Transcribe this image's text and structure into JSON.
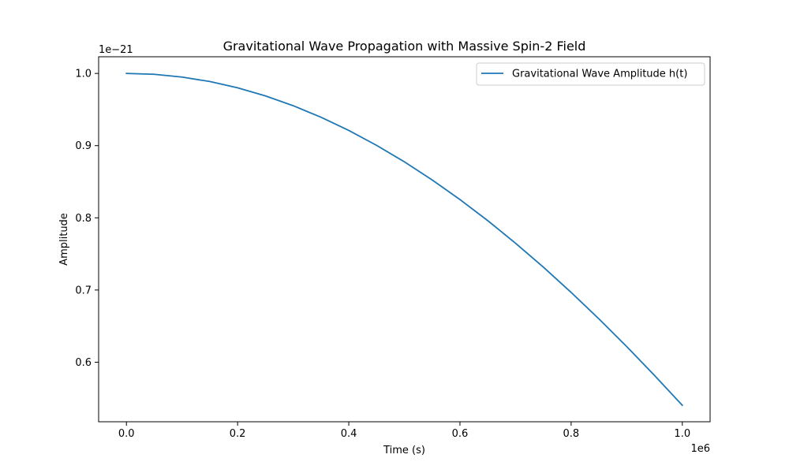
{
  "chart_data": {
    "type": "line",
    "title": "Gravitational Wave Propagation with Massive Spin-2 Field",
    "xlabel": "Time (s)",
    "ylabel": "Amplitude",
    "x_offset_label": "1e6",
    "y_offset_label": "1e−21",
    "xlim": [
      -50000,
      1050000
    ],
    "ylim": [
      5.175e-22,
      1.0231e-21
    ],
    "x_ticks": [
      0,
      200000,
      400000,
      600000,
      800000,
      1000000
    ],
    "x_tick_labels": [
      "0.0",
      "0.2",
      "0.4",
      "0.6",
      "0.8",
      "1.0"
    ],
    "y_ticks": [
      6e-22,
      7e-22,
      8e-22,
      9e-22,
      1e-21
    ],
    "y_tick_labels": [
      "0.6",
      "0.7",
      "0.8",
      "0.9",
      "1.0"
    ],
    "grid": false,
    "legend_position": "upper right",
    "series": [
      {
        "name": "Gravitational Wave Amplitude h(t)",
        "color": "#1f77b4",
        "x": [
          0,
          50000,
          100000,
          150000,
          200000,
          250000,
          300000,
          350000,
          400000,
          450000,
          500000,
          550000,
          600000,
          650000,
          700000,
          750000,
          800000,
          850000,
          900000,
          950000,
          1000000
        ],
        "y": [
          1e-21,
          9.988e-22,
          9.95e-22,
          9.888e-22,
          9.801e-22,
          9.689e-22,
          9.553e-22,
          9.394e-22,
          9.211e-22,
          9.004e-22,
          8.776e-22,
          8.525e-22,
          8.253e-22,
          7.961e-22,
          7.648e-22,
          7.317e-22,
          6.967e-22,
          6.6e-22,
          6.216e-22,
          5.817e-22,
          5.403e-22
        ]
      }
    ]
  }
}
